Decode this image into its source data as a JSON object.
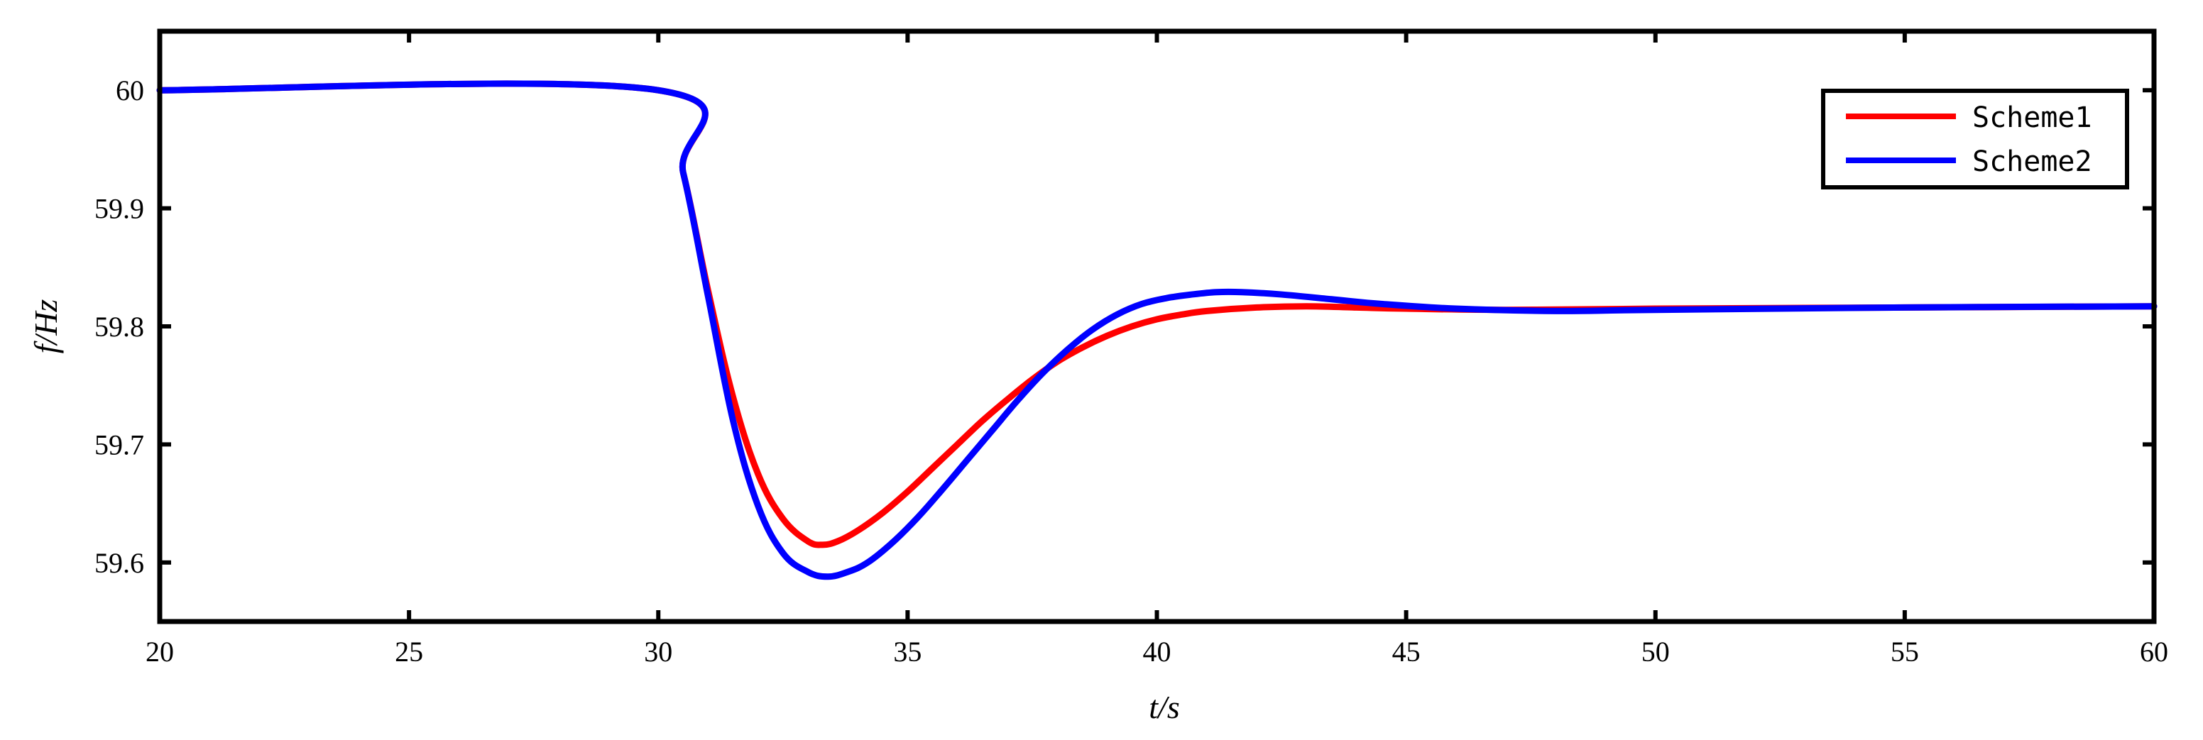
{
  "chart_data": {
    "type": "line",
    "title": "",
    "xlabel": "t/s",
    "ylabel": "f/Hz",
    "xlim": [
      20,
      60
    ],
    "ylim": [
      59.55,
      60.05
    ],
    "xticks": [
      20,
      25,
      30,
      35,
      40,
      45,
      50,
      55,
      60
    ],
    "xtick_labels": [
      "20",
      "25",
      "30",
      "35",
      "40",
      "45",
      "50",
      "55",
      "60"
    ],
    "yticks": [
      59.6,
      59.7,
      59.8,
      59.9,
      60.0
    ],
    "ytick_labels": [
      "59.6",
      "59.7",
      "59.8",
      "59.9",
      "60"
    ],
    "grid": false,
    "legend_position": "top-right",
    "series": [
      {
        "name": "Scheme1",
        "color": "#ff0000",
        "x": [
          20,
          30,
          30.5,
          31,
          31.5,
          32,
          32.5,
          33,
          33.3,
          33.6,
          34,
          34.5,
          35,
          35.5,
          36,
          36.5,
          37,
          37.5,
          38,
          38.5,
          39,
          39.5,
          40,
          40.5,
          41,
          42,
          43,
          44,
          45,
          47,
          50,
          55,
          60
        ],
        "y": [
          60.0,
          60.0,
          59.93,
          59.83,
          59.74,
          59.675,
          59.637,
          59.618,
          59.615,
          59.618,
          59.627,
          59.642,
          59.66,
          59.68,
          59.7,
          59.72,
          59.738,
          59.755,
          59.77,
          59.782,
          59.792,
          59.8,
          59.806,
          59.81,
          59.813,
          59.816,
          59.817,
          59.816,
          59.815,
          59.814,
          59.815,
          59.816,
          59.817
        ]
      },
      {
        "name": "Scheme2",
        "color": "#0000ff",
        "x": [
          20,
          30,
          30.5,
          31,
          31.5,
          32,
          32.5,
          33,
          33.4,
          33.8,
          34.2,
          34.7,
          35.2,
          35.7,
          36.2,
          36.7,
          37.2,
          37.7,
          38.2,
          38.7,
          39.2,
          39.7,
          40.2,
          40.7,
          41.2,
          41.7,
          42.5,
          43.5,
          44.5,
          46,
          48,
          50,
          55,
          60
        ],
        "y": [
          60.0,
          60.0,
          59.93,
          59.825,
          59.72,
          59.648,
          59.608,
          59.592,
          59.588,
          59.592,
          59.6,
          59.617,
          59.638,
          59.662,
          59.687,
          59.712,
          59.737,
          59.76,
          59.78,
          59.797,
          59.81,
          59.819,
          59.824,
          59.827,
          59.829,
          59.829,
          59.827,
          59.823,
          59.819,
          59.815,
          59.813,
          59.814,
          59.816,
          59.817
        ]
      }
    ]
  }
}
